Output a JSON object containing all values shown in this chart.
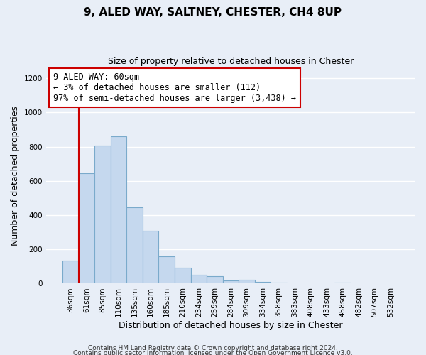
{
  "title": "9, ALED WAY, SALTNEY, CHESTER, CH4 8UP",
  "subtitle": "Size of property relative to detached houses in Chester",
  "xlabel": "Distribution of detached houses by size in Chester",
  "ylabel": "Number of detached properties",
  "bar_labels": [
    "36sqm",
    "61sqm",
    "85sqm",
    "110sqm",
    "135sqm",
    "160sqm",
    "185sqm",
    "210sqm",
    "234sqm",
    "259sqm",
    "284sqm",
    "309sqm",
    "334sqm",
    "358sqm",
    "383sqm",
    "408sqm",
    "433sqm",
    "458sqm",
    "482sqm",
    "507sqm",
    "532sqm"
  ],
  "bar_values": [
    135,
    645,
    805,
    860,
    445,
    310,
    160,
    95,
    52,
    42,
    18,
    22,
    10,
    4,
    2,
    0,
    0,
    8,
    0,
    0,
    3
  ],
  "bar_color": "#c5d8ee",
  "bar_edge_color": "#7aaacb",
  "vline_color": "#cc0000",
  "annotation_title": "9 ALED WAY: 60sqm",
  "annotation_line1": "← 3% of detached houses are smaller (112)",
  "annotation_line2": "97% of semi-detached houses are larger (3,438) →",
  "annotation_box_color": "#ffffff",
  "annotation_box_edge": "#cc0000",
  "ylim": [
    0,
    1260
  ],
  "yticks": [
    0,
    200,
    400,
    600,
    800,
    1000,
    1200
  ],
  "footer1": "Contains HM Land Registry data © Crown copyright and database right 2024.",
  "footer2": "Contains public sector information licensed under the Open Government Licence v3.0.",
  "background_color": "#e8eef7",
  "plot_bg_color": "#e8eef7",
  "grid_color": "#ffffff",
  "title_fontsize": 11,
  "subtitle_fontsize": 9,
  "ylabel_fontsize": 9,
  "xlabel_fontsize": 9,
  "tick_fontsize": 7.5,
  "footer_fontsize": 6.5
}
